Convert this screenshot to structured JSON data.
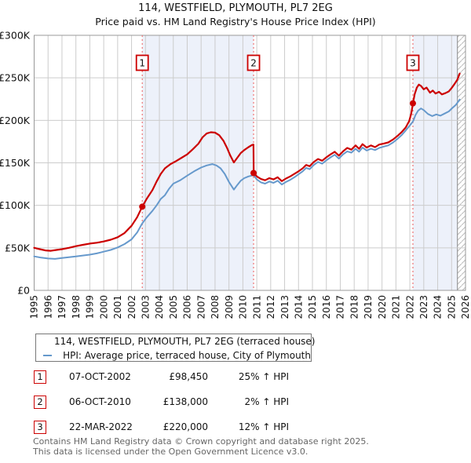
{
  "title": "114, WESTFIELD, PLYMOUTH, PL7 2EG",
  "subtitle": "Price paid vs. HM Land Registry's House Price Index (HPI)",
  "chart_data": {
    "type": "line",
    "title": "114, WESTFIELD, PLYMOUTH, PL7 2EG",
    "subtitle": "Price paid vs. HM Land Registry's House Price Index (HPI)",
    "xlim": [
      1995,
      2026
    ],
    "ylim": [
      0,
      300000
    ],
    "grid": true,
    "legend_position": "below",
    "x_ticks": [
      1995,
      1996,
      1997,
      1998,
      1999,
      2000,
      2001,
      2002,
      2003,
      2004,
      2005,
      2006,
      2007,
      2008,
      2009,
      2010,
      2011,
      2012,
      2013,
      2014,
      2015,
      2016,
      2017,
      2018,
      2019,
      2020,
      2021,
      2022,
      2023,
      2024,
      2025,
      2026
    ],
    "y_ticks": [
      {
        "value": 0,
        "label": "£0"
      },
      {
        "value": 50000,
        "label": "£50K"
      },
      {
        "value": 100000,
        "label": "£100K"
      },
      {
        "value": 150000,
        "label": "£150K"
      },
      {
        "value": 200000,
        "label": "£200K"
      },
      {
        "value": 250000,
        "label": "£250K"
      },
      {
        "value": 300000,
        "label": "£300K"
      }
    ],
    "colors": {
      "property": "#cc0000",
      "hpi": "#6699cc",
      "ownership_band": "#edf1fa",
      "sale_line": "#ee7575",
      "grid": "#cccccc",
      "plot_border": "#999999",
      "hatch": "#bbbbbb",
      "hatch_edge": "#888888"
    },
    "ownership_bands": [
      [
        2002.77,
        2010.77
      ],
      [
        2022.22,
        2025.42
      ]
    ],
    "future_hatch": [
      2025.42,
      2026
    ],
    "sale_markers": [
      {
        "label": "1",
        "x": 2002.77,
        "price": 98450
      },
      {
        "label": "2",
        "x": 2010.77,
        "price": 138000
      },
      {
        "label": "3",
        "x": 2022.22,
        "price": 220000
      }
    ],
    "series": [
      {
        "name": "114, WESTFIELD, PLYMOUTH, PL7 2EG (terraced house)",
        "color": "#cc0000",
        "points": [
          [
            1995.0,
            50000
          ],
          [
            1995.4,
            48500
          ],
          [
            1995.8,
            47000
          ],
          [
            1996.2,
            46500
          ],
          [
            1996.6,
            47500
          ],
          [
            1997.0,
            48500
          ],
          [
            1997.5,
            50000
          ],
          [
            1998.0,
            52000
          ],
          [
            1998.5,
            53500
          ],
          [
            1999.0,
            55000
          ],
          [
            1999.5,
            56000
          ],
          [
            2000.0,
            57500
          ],
          [
            2000.5,
            59500
          ],
          [
            2001.0,
            62500
          ],
          [
            2001.5,
            67500
          ],
          [
            2002.0,
            76000
          ],
          [
            2002.4,
            86000
          ],
          [
            2002.77,
            98450
          ],
          [
            2003.1,
            108000
          ],
          [
            2003.5,
            118000
          ],
          [
            2003.8,
            128000
          ],
          [
            2004.1,
            137000
          ],
          [
            2004.4,
            143500
          ],
          [
            2004.8,
            148500
          ],
          [
            2005.2,
            152000
          ],
          [
            2005.6,
            156000
          ],
          [
            2006.0,
            160000
          ],
          [
            2006.4,
            166000
          ],
          [
            2006.8,
            172500
          ],
          [
            2007.1,
            180000
          ],
          [
            2007.4,
            184500
          ],
          [
            2007.7,
            186000
          ],
          [
            2008.0,
            185500
          ],
          [
            2008.3,
            182500
          ],
          [
            2008.6,
            176000
          ],
          [
            2008.85,
            168000
          ],
          [
            2009.1,
            158500
          ],
          [
            2009.35,
            150500
          ],
          [
            2009.6,
            156000
          ],
          [
            2009.85,
            161500
          ],
          [
            2010.1,
            165000
          ],
          [
            2010.4,
            168500
          ],
          [
            2010.65,
            171000
          ],
          [
            2010.76,
            171500
          ],
          [
            2010.78,
            138000
          ],
          [
            2011.0,
            134000
          ],
          [
            2011.3,
            131000
          ],
          [
            2011.6,
            129500
          ],
          [
            2011.9,
            132000
          ],
          [
            2012.2,
            130500
          ],
          [
            2012.5,
            133000
          ],
          [
            2012.8,
            128500
          ],
          [
            2013.1,
            131500
          ],
          [
            2013.4,
            134000
          ],
          [
            2013.7,
            137000
          ],
          [
            2014.0,
            140000
          ],
          [
            2014.3,
            143500
          ],
          [
            2014.55,
            147500
          ],
          [
            2014.8,
            146000
          ],
          [
            2015.1,
            151000
          ],
          [
            2015.4,
            154500
          ],
          [
            2015.7,
            152500
          ],
          [
            2016.0,
            156500
          ],
          [
            2016.3,
            160000
          ],
          [
            2016.6,
            163000
          ],
          [
            2016.9,
            158500
          ],
          [
            2017.2,
            163500
          ],
          [
            2017.5,
            167500
          ],
          [
            2017.8,
            165500
          ],
          [
            2018.1,
            170500
          ],
          [
            2018.35,
            166500
          ],
          [
            2018.6,
            172000
          ],
          [
            2018.9,
            168000
          ],
          [
            2019.2,
            170500
          ],
          [
            2019.5,
            168500
          ],
          [
            2019.8,
            171500
          ],
          [
            2020.1,
            172500
          ],
          [
            2020.45,
            174000
          ],
          [
            2020.8,
            177500
          ],
          [
            2021.1,
            181500
          ],
          [
            2021.4,
            186000
          ],
          [
            2021.7,
            191500
          ],
          [
            2021.95,
            199000
          ],
          [
            2022.1,
            208000
          ],
          [
            2022.22,
            220000
          ],
          [
            2022.35,
            231000
          ],
          [
            2022.5,
            238500
          ],
          [
            2022.65,
            242000
          ],
          [
            2022.8,
            240500
          ],
          [
            2023.0,
            236500
          ],
          [
            2023.2,
            238500
          ],
          [
            2023.45,
            232500
          ],
          [
            2023.65,
            235000
          ],
          [
            2023.85,
            231500
          ],
          [
            2024.1,
            233500
          ],
          [
            2024.3,
            230500
          ],
          [
            2024.55,
            232000
          ],
          [
            2024.8,
            234000
          ],
          [
            2025.0,
            238000
          ],
          [
            2025.2,
            242500
          ],
          [
            2025.4,
            247500
          ],
          [
            2025.58,
            255000
          ]
        ]
      },
      {
        "name": "HPI: Average price, terraced house, City of Plymouth",
        "color": "#6699cc",
        "points": [
          [
            1995.0,
            40000
          ],
          [
            1995.5,
            38500
          ],
          [
            1996.0,
            37500
          ],
          [
            1996.5,
            37000
          ],
          [
            1997.0,
            38000
          ],
          [
            1997.5,
            39000
          ],
          [
            1998.0,
            40000
          ],
          [
            1998.5,
            41000
          ],
          [
            1999.0,
            42000
          ],
          [
            1999.5,
            43500
          ],
          [
            2000.0,
            45500
          ],
          [
            2000.5,
            47500
          ],
          [
            2001.0,
            50500
          ],
          [
            2001.5,
            54500
          ],
          [
            2002.0,
            60000
          ],
          [
            2002.4,
            68000
          ],
          [
            2002.77,
            78800
          ],
          [
            2003.1,
            86000
          ],
          [
            2003.5,
            93500
          ],
          [
            2003.8,
            100000
          ],
          [
            2004.1,
            107500
          ],
          [
            2004.4,
            112000
          ],
          [
            2004.7,
            119500
          ],
          [
            2005.0,
            125500
          ],
          [
            2005.5,
            129500
          ],
          [
            2006.0,
            135000
          ],
          [
            2006.5,
            140000
          ],
          [
            2007.0,
            144500
          ],
          [
            2007.4,
            147000
          ],
          [
            2007.8,
            148500
          ],
          [
            2008.1,
            147000
          ],
          [
            2008.4,
            143500
          ],
          [
            2008.7,
            137000
          ],
          [
            2009.0,
            127500
          ],
          [
            2009.35,
            118500
          ],
          [
            2009.6,
            124000
          ],
          [
            2009.85,
            129000
          ],
          [
            2010.1,
            132000
          ],
          [
            2010.4,
            134000
          ],
          [
            2010.77,
            135500
          ],
          [
            2011.0,
            130500
          ],
          [
            2011.3,
            127000
          ],
          [
            2011.6,
            125500
          ],
          [
            2011.9,
            128000
          ],
          [
            2012.2,
            126500
          ],
          [
            2012.5,
            129000
          ],
          [
            2012.8,
            124500
          ],
          [
            2013.1,
            127500
          ],
          [
            2013.4,
            130000
          ],
          [
            2013.7,
            133000
          ],
          [
            2014.0,
            136500
          ],
          [
            2014.3,
            140000
          ],
          [
            2014.55,
            144000
          ],
          [
            2014.8,
            142500
          ],
          [
            2015.1,
            147500
          ],
          [
            2015.4,
            151000
          ],
          [
            2015.7,
            149000
          ],
          [
            2016.0,
            153000
          ],
          [
            2016.3,
            156500
          ],
          [
            2016.6,
            159500
          ],
          [
            2016.9,
            155000
          ],
          [
            2017.2,
            160000
          ],
          [
            2017.5,
            163500
          ],
          [
            2017.8,
            162000
          ],
          [
            2018.1,
            166500
          ],
          [
            2018.35,
            163000
          ],
          [
            2018.6,
            168000
          ],
          [
            2018.9,
            164500
          ],
          [
            2019.2,
            166500
          ],
          [
            2019.5,
            165000
          ],
          [
            2019.8,
            167500
          ],
          [
            2020.1,
            169000
          ],
          [
            2020.45,
            170500
          ],
          [
            2020.8,
            174000
          ],
          [
            2021.1,
            178000
          ],
          [
            2021.4,
            182500
          ],
          [
            2021.7,
            188000
          ],
          [
            2021.95,
            193000
          ],
          [
            2022.1,
            196000
          ],
          [
            2022.25,
            199500
          ],
          [
            2022.4,
            206000
          ],
          [
            2022.6,
            211500
          ],
          [
            2022.8,
            214000
          ],
          [
            2023.0,
            212000
          ],
          [
            2023.3,
            207500
          ],
          [
            2023.6,
            205000
          ],
          [
            2023.9,
            207000
          ],
          [
            2024.2,
            205500
          ],
          [
            2024.5,
            208000
          ],
          [
            2024.8,
            210500
          ],
          [
            2025.05,
            214500
          ],
          [
            2025.3,
            218000
          ],
          [
            2025.58,
            224500
          ]
        ]
      }
    ]
  },
  "legend": {
    "items": [
      {
        "color": "#cc0000",
        "label": "114, WESTFIELD, PLYMOUTH, PL7 2EG (terraced house)"
      },
      {
        "color": "#6699cc",
        "label": "HPI: Average price, terraced house, City of Plymouth"
      }
    ]
  },
  "transactions": [
    {
      "num": "1",
      "date": "07-OCT-2002",
      "price": "£98,450",
      "hpi": "25% ↑ HPI"
    },
    {
      "num": "2",
      "date": "06-OCT-2010",
      "price": "£138,000",
      "hpi": "2% ↑ HPI"
    },
    {
      "num": "3",
      "date": "22-MAR-2022",
      "price": "£220,000",
      "hpi": "12% ↑ HPI"
    }
  ],
  "footer": {
    "line1": "Contains HM Land Registry data © Crown copyright and database right 2025.",
    "line2": "This data is licensed under the Open Government Licence v3.0."
  }
}
